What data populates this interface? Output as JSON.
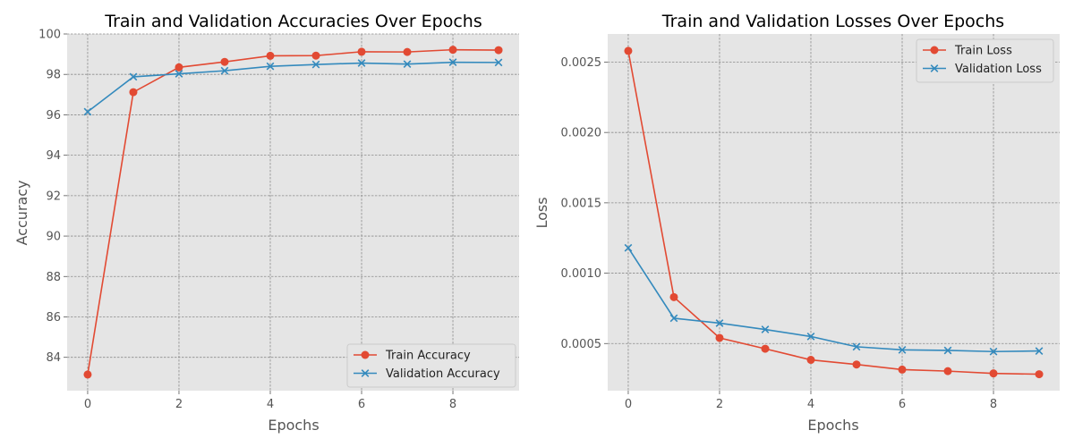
{
  "chart_data": [
    {
      "type": "line",
      "title": "Train and Validation Accuracies Over Epochs",
      "xlabel": "Epochs",
      "ylabel": "Accuracy",
      "xlim": [
        -0.45,
        9.45
      ],
      "ylim": [
        82.35,
        100.0
      ],
      "xticks": [
        0,
        2,
        4,
        6,
        8
      ],
      "yticks": [
        84,
        86,
        88,
        90,
        92,
        94,
        96,
        98,
        100
      ],
      "grid": true,
      "legend_position": "bottom-right",
      "x": [
        0,
        1,
        2,
        3,
        4,
        5,
        6,
        7,
        8,
        9
      ],
      "series": [
        {
          "name": "Train Accuracy",
          "color": "#e24a33",
          "marker": "circle",
          "values": [
            83.15,
            97.12,
            98.35,
            98.62,
            98.92,
            98.93,
            99.12,
            99.11,
            99.22,
            99.2
          ]
        },
        {
          "name": "Validation Accuracy",
          "color": "#348abd",
          "marker": "x",
          "values": [
            96.15,
            97.88,
            98.03,
            98.18,
            98.4,
            98.49,
            98.56,
            98.51,
            98.6,
            98.59
          ]
        }
      ]
    },
    {
      "type": "line",
      "title": "Train and Validation Losses Over Epochs",
      "xlabel": "Epochs",
      "ylabel": "Loss",
      "xlim": [
        -0.45,
        9.45
      ],
      "ylim": [
        0.000165,
        0.0027
      ],
      "xticks": [
        0,
        2,
        4,
        6,
        8
      ],
      "yticks": [
        0.0005,
        0.001,
        0.0015,
        0.002,
        0.0025
      ],
      "grid": true,
      "legend_position": "top-right",
      "x": [
        0,
        1,
        2,
        3,
        4,
        5,
        6,
        7,
        8,
        9
      ],
      "series": [
        {
          "name": "Train Loss",
          "color": "#e24a33",
          "marker": "circle",
          "values": [
            0.00258,
            0.00083,
            0.00054,
            0.000463,
            0.000384,
            0.000351,
            0.000315,
            0.000304,
            0.000288,
            0.000282
          ]
        },
        {
          "name": "Validation Loss",
          "color": "#348abd",
          "marker": "x",
          "values": [
            0.00118,
            0.00068,
            0.000645,
            0.0006,
            0.00055,
            0.000477,
            0.000455,
            0.000451,
            0.000443,
            0.000447
          ]
        }
      ]
    }
  ]
}
